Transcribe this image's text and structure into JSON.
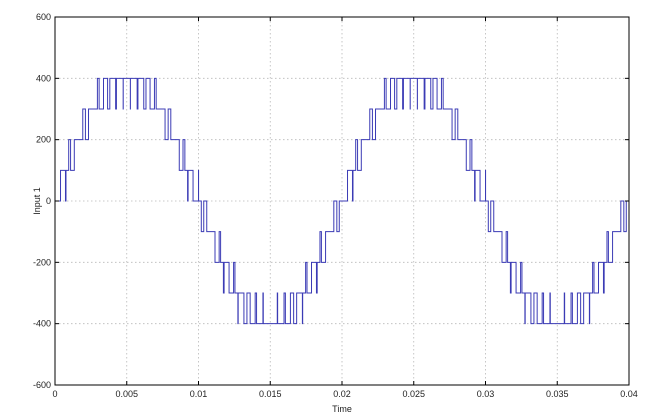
{
  "chart_data": {
    "type": "line",
    "title": "",
    "xlabel": "Time",
    "ylabel": "Input 1",
    "xlim": [
      0,
      0.04
    ],
    "ylim": [
      -600,
      600
    ],
    "grid": true,
    "xticks": [
      0,
      0.005,
      0.01,
      0.015,
      0.02,
      0.025,
      0.03,
      0.035,
      0.04
    ],
    "xtick_labels": [
      "0",
      "0.005",
      "0.01",
      "0.015",
      "0.02",
      "0.025",
      "0.03",
      "0.035",
      "0.04"
    ],
    "yticks": [
      -600,
      -400,
      -200,
      0,
      200,
      400,
      600
    ],
    "ytick_labels": [
      "-600",
      "-400",
      "-200",
      "0",
      "200",
      "400",
      "600"
    ],
    "line_color": "#3b3bb5",
    "series": [
      {
        "name": "",
        "description": "Multilevel PWM staircase approximation of a 50 Hz sinusoid, amplitude 400, levels of 100",
        "frequency_hz": 50,
        "amplitude": 400,
        "level_step": 100,
        "x_range": [
          0,
          0.04
        ]
      }
    ]
  }
}
